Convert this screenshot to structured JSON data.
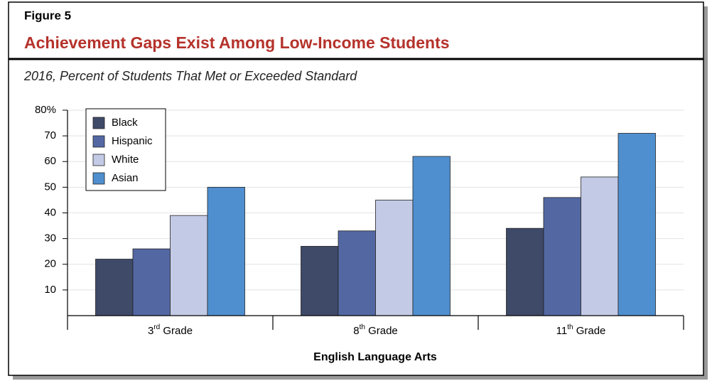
{
  "chart_data": {
    "type": "bar",
    "figure_label": "Figure 5",
    "title": "Achievement Gaps Exist Among Low-Income Students",
    "subtitle": "2016, Percent of Students That Met or Exceeded Standard",
    "x_label": "English Language Arts",
    "categories": [
      "3rd Grade",
      "8th Grade",
      "11th Grade"
    ],
    "series": [
      {
        "name": "Black",
        "color": "#3f4a69",
        "values": [
          22,
          27,
          34
        ]
      },
      {
        "name": "Hispanic",
        "color": "#5368a3",
        "values": [
          26,
          33,
          46
        ]
      },
      {
        "name": "White",
        "color": "#c3cae6",
        "values": [
          39,
          45,
          54
        ]
      },
      {
        "name": "Asian",
        "color": "#4f8fcf",
        "values": [
          50,
          62,
          71
        ]
      }
    ],
    "ylim": [
      0,
      80
    ],
    "yticks": [
      10,
      20,
      30,
      40,
      50,
      60,
      70,
      {
        "value": 80,
        "label": "80%"
      }
    ],
    "grid": true,
    "legend_position": "upper left"
  }
}
